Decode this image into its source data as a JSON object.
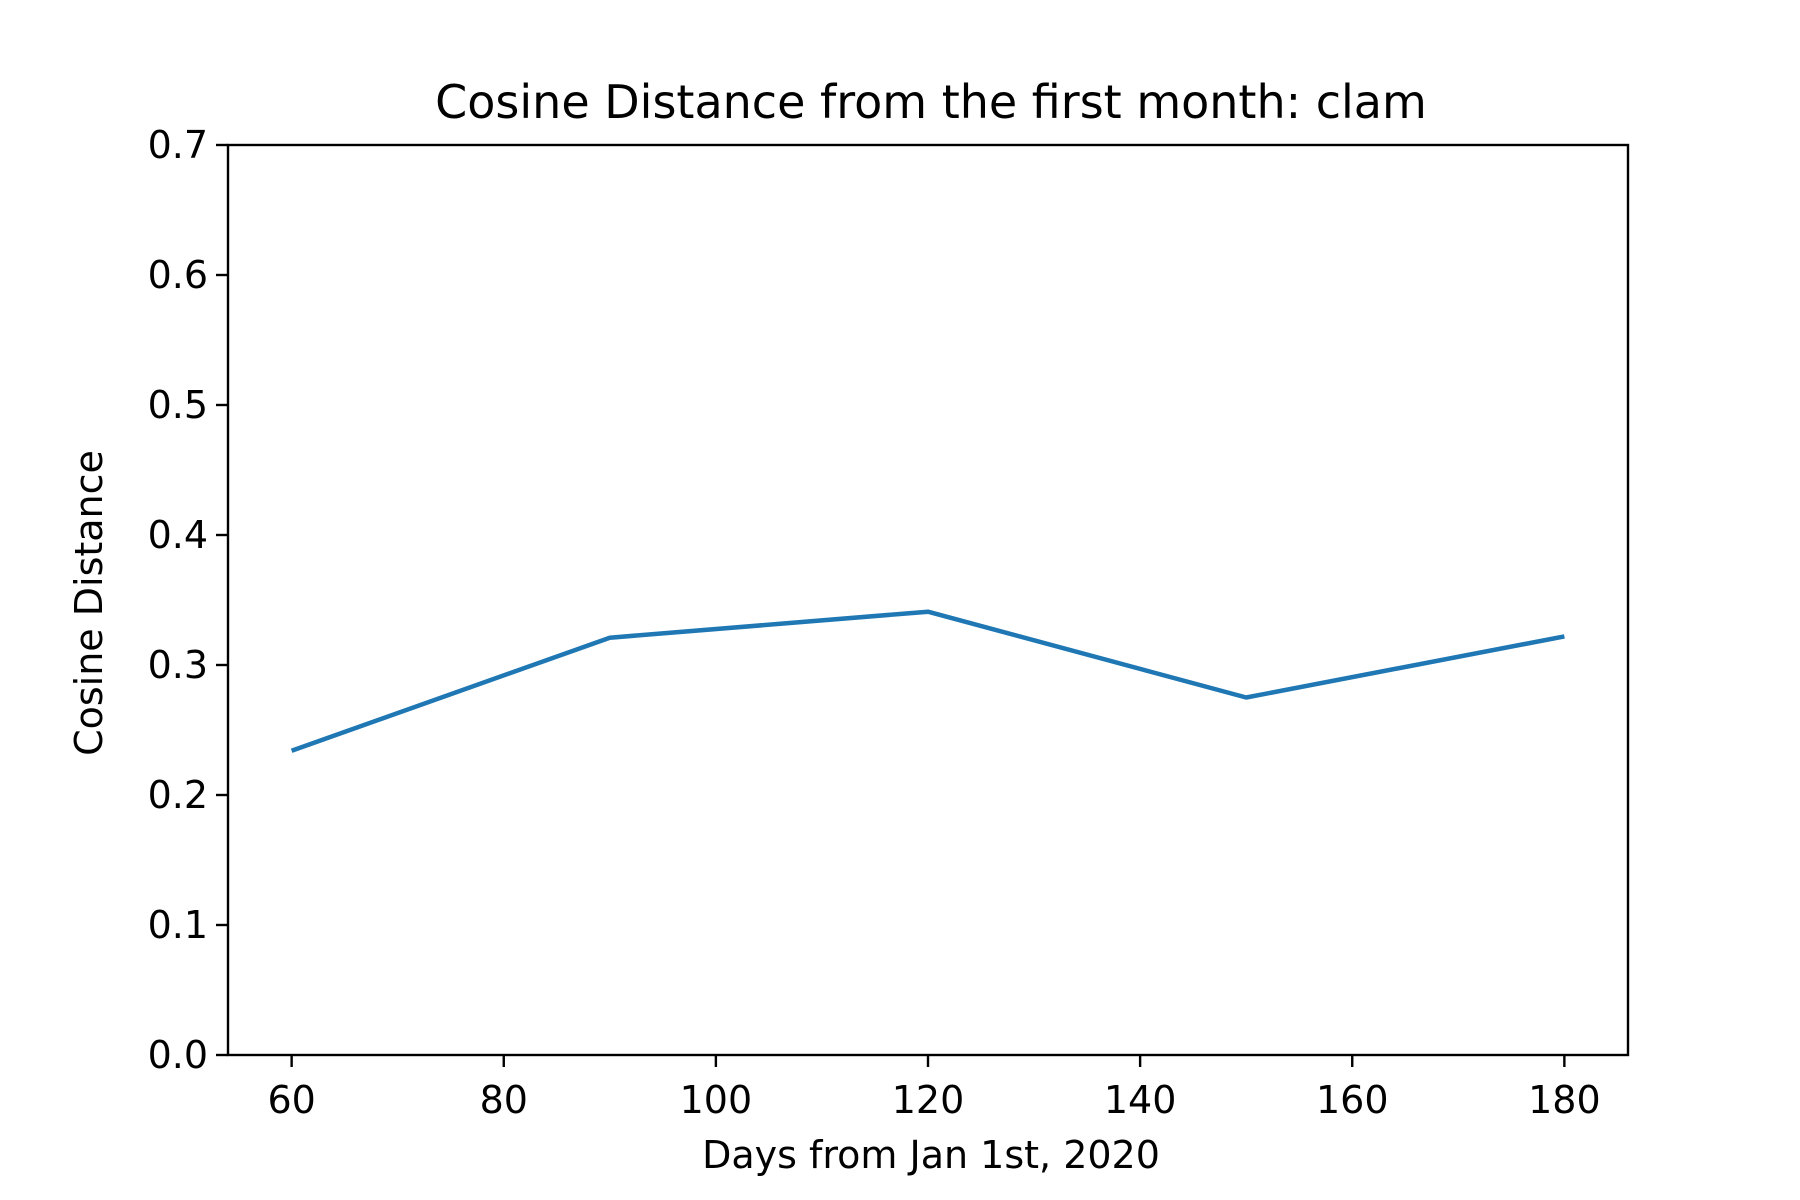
{
  "chart_data": {
    "type": "line",
    "title": "Cosine Distance from the first month: clam",
    "xlabel": "Days from Jan 1st, 2020",
    "ylabel": "Cosine Distance",
    "x": [
      60,
      90,
      120,
      150,
      180
    ],
    "series": [
      {
        "values": [
          0.234,
          0.321,
          0.341,
          0.275,
          0.322
        ],
        "color": "#1f77b4"
      }
    ],
    "xlim": [
      54,
      186
    ],
    "ylim": [
      0.0,
      0.7
    ],
    "xticks": [
      60,
      80,
      100,
      120,
      140,
      160,
      180
    ],
    "xtick_labels": [
      "60",
      "80",
      "100",
      "120",
      "140",
      "160",
      "180"
    ],
    "yticks": [
      0.0,
      0.1,
      0.2,
      0.3,
      0.4,
      0.5,
      0.6,
      0.7
    ],
    "ytick_labels": [
      "0.0",
      "0.1",
      "0.2",
      "0.3",
      "0.4",
      "0.5",
      "0.6",
      "0.7"
    ],
    "grid": false,
    "legend": "none"
  }
}
